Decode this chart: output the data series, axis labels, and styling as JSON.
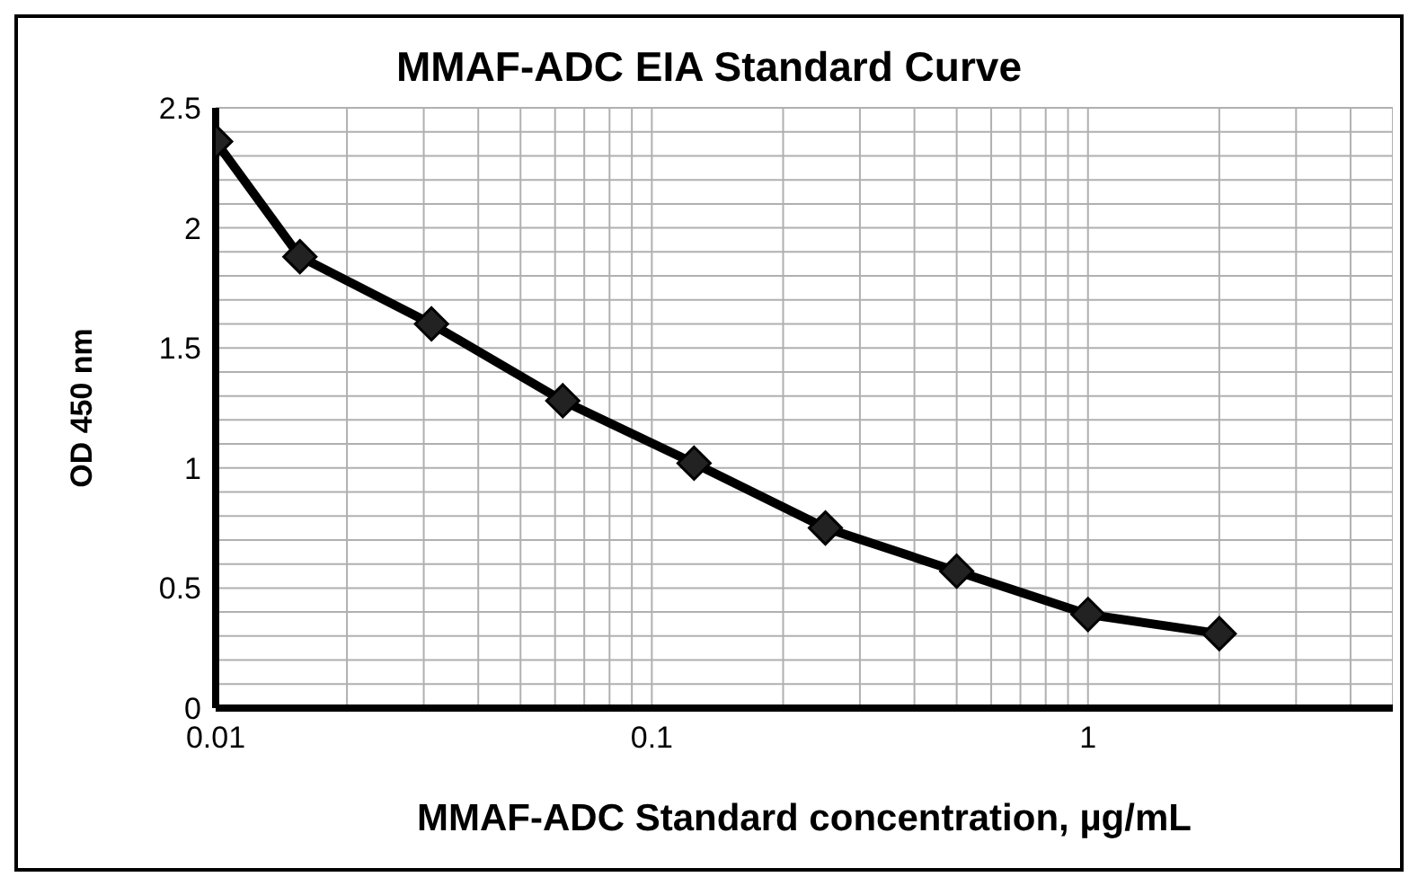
{
  "chart_data": {
    "type": "line",
    "title": "MMAF-ADC EIA Standard Curve",
    "xlabel": "MMAF-ADC Standard concentration, µg/mL",
    "ylabel": "OD  450 nm",
    "x": [
      0.01,
      0.0156,
      0.03125,
      0.0625,
      0.125,
      0.25,
      0.5,
      1,
      2
    ],
    "series": [
      {
        "color": "#000000",
        "values": [
          2.36,
          1.88,
          1.6,
          1.28,
          1.02,
          0.75,
          0.57,
          0.39,
          0.31
        ]
      }
    ],
    "log": "x",
    "xlim": [
      0.01,
      5
    ],
    "xticks": [
      0.01,
      {
        "value": 0.02,
        "label": null
      },
      {
        "value": 0.03,
        "label": null
      },
      {
        "value": 0.04,
        "label": null
      },
      {
        "value": 0.05,
        "label": null
      },
      {
        "value": 0.06,
        "label": null
      },
      {
        "value": 0.07,
        "label": null
      },
      {
        "value": 0.08,
        "label": null
      },
      {
        "value": 0.09,
        "label": null
      },
      0.1,
      {
        "value": 0.2,
        "label": null
      },
      {
        "value": 0.3,
        "label": null
      },
      {
        "value": 0.4,
        "label": null
      },
      {
        "value": 0.5,
        "label": null
      },
      {
        "value": 0.6,
        "label": null
      },
      {
        "value": 0.7,
        "label": null
      },
      {
        "value": 0.8,
        "label": null
      },
      {
        "value": 0.9,
        "label": null
      },
      1,
      {
        "value": 2,
        "label": null
      },
      {
        "value": 3,
        "label": null
      },
      {
        "value": 4,
        "label": null
      },
      {
        "value": 5,
        "label": null
      }
    ],
    "ylim": [
      0,
      2.5
    ],
    "yticks": [
      0,
      {
        "value": 0.1,
        "label": null
      },
      {
        "value": 0.2,
        "label": null
      },
      {
        "value": 0.3,
        "label": null
      },
      {
        "value": 0.4,
        "label": null
      },
      0.5,
      {
        "value": 0.6,
        "label": null
      },
      {
        "value": 0.7,
        "label": null
      },
      {
        "value": 0.8,
        "label": null
      },
      {
        "value": 0.9,
        "label": null
      },
      1,
      {
        "value": 1.1,
        "label": null
      },
      {
        "value": 1.2,
        "label": null
      },
      {
        "value": 1.3,
        "label": null
      },
      {
        "value": 1.4,
        "label": null
      },
      1.5,
      {
        "value": 1.6,
        "label": null
      },
      {
        "value": 1.7,
        "label": null
      },
      {
        "value": 1.8,
        "label": null
      },
      {
        "value": 1.9,
        "label": null
      },
      2,
      {
        "value": 2.1,
        "label": null
      },
      {
        "value": 2.2,
        "label": null
      },
      {
        "value": 2.3,
        "label": null
      },
      {
        "value": 2.4,
        "label": null
      },
      2.5
    ],
    "grid": true,
    "legend": false,
    "marker": "diamond",
    "line_style": "solid"
  }
}
